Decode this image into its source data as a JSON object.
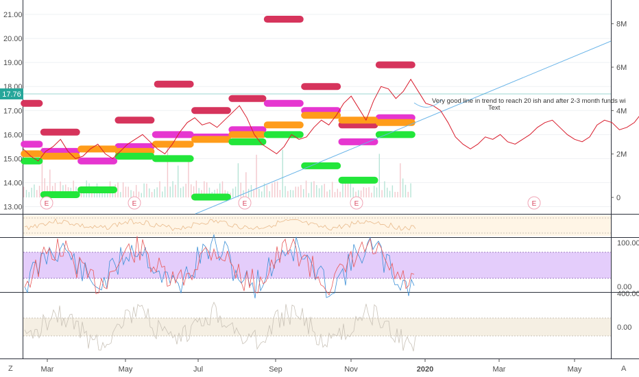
{
  "chart_data": {
    "type": "line",
    "price": {
      "last": "17.76",
      "ylim": [
        12.7,
        21.6
      ],
      "y_ticks": [
        "21.00",
        "20.00",
        "19.00",
        "18.00",
        "17.00",
        "16.00",
        "15.00",
        "14.00",
        "13.00"
      ],
      "x": [
        0,
        3,
        6,
        9,
        12,
        15,
        18,
        21,
        24,
        27,
        30,
        33,
        36,
        39,
        42,
        45,
        48,
        51,
        54,
        57,
        60,
        63,
        66,
        69,
        72,
        75,
        78,
        81,
        84,
        87,
        90,
        93,
        96,
        99,
        102,
        105,
        108,
        111,
        114,
        117,
        120,
        123,
        126,
        129,
        132,
        135,
        138,
        141,
        144,
        147,
        150,
        153,
        156,
        159,
        162,
        165,
        168,
        171,
        174,
        177,
        180,
        183,
        186,
        189,
        192,
        195,
        198,
        201,
        204,
        207,
        210,
        213,
        216,
        219,
        222,
        225,
        228,
        231,
        234,
        237,
        240,
        243,
        246,
        249,
        252,
        255,
        258,
        261,
        264,
        267,
        270,
        273,
        276,
        279,
        282,
        285,
        288,
        291,
        294
      ],
      "close": [
        15.4,
        15.1,
        14.9,
        15.3,
        15.5,
        15.8,
        15.3,
        15.0,
        15.1,
        15.4,
        15.6,
        15.2,
        15.0,
        15.3,
        15.6,
        15.8,
        16.0,
        15.7,
        15.4,
        15.2,
        15.6,
        16.1,
        16.5,
        16.7,
        16.4,
        16.5,
        16.3,
        16.6,
        16.9,
        17.2,
        16.7,
        16.0,
        15.6,
        15.4,
        15.2,
        15.5,
        16.0,
        15.8,
        15.9,
        16.3,
        16.6,
        16.4,
        16.8,
        17.3,
        17.6,
        17.1,
        16.6,
        17.4,
        18.0,
        17.9,
        17.5,
        17.8,
        18.3,
        17.8,
        17.3,
        17.2,
        17.0,
        16.5,
        15.9,
        15.6,
        15.4,
        15.6,
        15.9,
        15.8,
        16.0,
        15.7,
        15.6,
        15.8,
        16.0,
        16.3,
        16.5,
        16.6,
        16.3,
        16.0,
        15.8,
        15.7,
        15.9,
        16.4,
        16.6,
        16.5,
        16.2,
        16.3,
        16.5,
        16.9,
        17.2,
        16.8,
        16.4,
        16.3,
        16.6,
        17.1,
        17.6,
        17.3,
        17.0,
        16.8,
        17.2,
        17.5,
        17.76,
        17.6,
        17.4
      ]
    },
    "volume": {
      "y_ticks": [
        "8M",
        "6M",
        "4M",
        "2M",
        "0"
      ],
      "ylim": [
        0,
        9
      ]
    },
    "x_ticks": [
      "Mar",
      "May",
      "Jul",
      "Sep",
      "Nov",
      "2020",
      "Mar",
      "May"
    ],
    "earnings_markers": [
      "E",
      "E",
      "E",
      "E",
      "E"
    ],
    "annotation": {
      "text": "Very good line in trend to reach 20 ish and after 2-3 month funds wi",
      "sub": "Text"
    },
    "level_bars": [
      {
        "color": "#d6345c",
        "price": 17.3,
        "x0": 0,
        "x1": 10
      },
      {
        "color": "#d6345c",
        "price": 16.1,
        "x0": 10,
        "x1": 29
      },
      {
        "color": "#d6345c",
        "price": 16.6,
        "x0": 48,
        "x1": 67
      },
      {
        "color": "#d6345c",
        "price": 18.1,
        "x0": 68,
        "x1": 87
      },
      {
        "color": "#d6345c",
        "price": 17.0,
        "x0": 87,
        "x1": 106
      },
      {
        "color": "#d6345c",
        "price": 17.5,
        "x0": 106,
        "x1": 124
      },
      {
        "color": "#d6345c",
        "price": 20.8,
        "x0": 124,
        "x1": 143
      },
      {
        "color": "#d6345c",
        "price": 18.0,
        "x0": 143,
        "x1": 162
      },
      {
        "color": "#d6345c",
        "price": 16.4,
        "x0": 162,
        "x1": 181
      },
      {
        "color": "#d6345c",
        "price": 18.9,
        "x0": 181,
        "x1": 200
      },
      {
        "color": "#e636d0",
        "price": 15.6,
        "x0": 0,
        "x1": 10
      },
      {
        "color": "#e636d0",
        "price": 15.3,
        "x0": 10,
        "x1": 29
      },
      {
        "color": "#e636d0",
        "price": 14.9,
        "x0": 29,
        "x1": 48
      },
      {
        "color": "#e636d0",
        "price": 15.5,
        "x0": 48,
        "x1": 67
      },
      {
        "color": "#e636d0",
        "price": 16.0,
        "x0": 67,
        "x1": 87
      },
      {
        "color": "#e636d0",
        "price": 15.9,
        "x0": 87,
        "x1": 106
      },
      {
        "color": "#e636d0",
        "price": 16.2,
        "x0": 106,
        "x1": 124
      },
      {
        "color": "#e636d0",
        "price": 17.3,
        "x0": 124,
        "x1": 143
      },
      {
        "color": "#e636d0",
        "price": 17.0,
        "x0": 143,
        "x1": 162
      },
      {
        "color": "#e636d0",
        "price": 15.7,
        "x0": 162,
        "x1": 181
      },
      {
        "color": "#e636d0",
        "price": 16.7,
        "x0": 181,
        "x1": 200
      },
      {
        "color": "#ff9c1a",
        "price": 15.2,
        "x0": 0,
        "x1": 10
      },
      {
        "color": "#ff9c1a",
        "price": 15.1,
        "x0": 10,
        "x1": 29
      },
      {
        "color": "#ff9c1a",
        "price": 15.4,
        "x0": 29,
        "x1": 48
      },
      {
        "color": "#ff9c1a",
        "price": 15.3,
        "x0": 48,
        "x1": 67
      },
      {
        "color": "#ff9c1a",
        "price": 15.6,
        "x0": 67,
        "x1": 87
      },
      {
        "color": "#ff9c1a",
        "price": 15.8,
        "x0": 87,
        "x1": 106
      },
      {
        "color": "#ff9c1a",
        "price": 16.0,
        "x0": 106,
        "x1": 124
      },
      {
        "color": "#ff9c1a",
        "price": 16.4,
        "x0": 124,
        "x1": 143
      },
      {
        "color": "#ff9c1a",
        "price": 16.8,
        "x0": 143,
        "x1": 162
      },
      {
        "color": "#ff9c1a",
        "price": 16.6,
        "x0": 162,
        "x1": 181
      },
      {
        "color": "#ff9c1a",
        "price": 16.5,
        "x0": 181,
        "x1": 200
      },
      {
        "color": "#22e63a",
        "price": 14.9,
        "x0": 0,
        "x1": 10
      },
      {
        "color": "#22e63a",
        "price": 13.5,
        "x0": 10,
        "x1": 29
      },
      {
        "color": "#22e63a",
        "price": 13.7,
        "x0": 29,
        "x1": 48
      },
      {
        "color": "#22e63a",
        "price": 15.1,
        "x0": 48,
        "x1": 67
      },
      {
        "color": "#22e63a",
        "price": 15.0,
        "x0": 67,
        "x1": 87
      },
      {
        "color": "#22e63a",
        "price": 13.4,
        "x0": 87,
        "x1": 106
      },
      {
        "color": "#22e63a",
        "price": 15.7,
        "x0": 106,
        "x1": 124
      },
      {
        "color": "#22e63a",
        "price": 16.0,
        "x0": 124,
        "x1": 143
      },
      {
        "color": "#22e63a",
        "price": 14.7,
        "x0": 143,
        "x1": 162
      },
      {
        "color": "#22e63a",
        "price": 14.1,
        "x0": 162,
        "x1": 181
      },
      {
        "color": "#22e63a",
        "price": 16.0,
        "x0": 181,
        "x1": 200
      }
    ],
    "stoch": {
      "y_ticks": [
        "100.00",
        "0.00"
      ],
      "band": [
        20,
        80
      ]
    },
    "osc": {
      "y_ticks": [
        "400.00",
        "0.00"
      ]
    }
  },
  "corner_left": "Z",
  "corner_right": "A",
  "colors": {
    "price_line": "#d81b2b",
    "price_line_up": "#16a17a",
    "trendline": "#69b4e8",
    "last_price_bg": "#26a69a",
    "grid": "#eef0f3",
    "stoch_band": "#e0c5fb",
    "cci_band": "#f6efe0"
  }
}
